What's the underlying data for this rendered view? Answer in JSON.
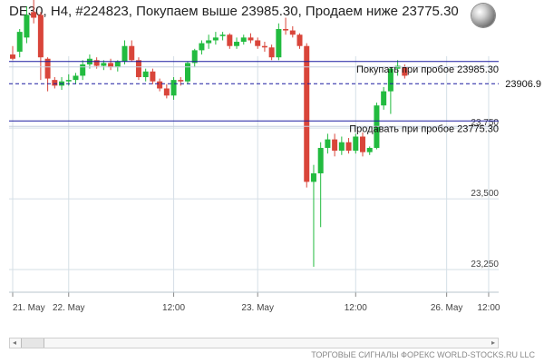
{
  "header": {
    "title": "DE30, H4, #224823, Покупаем выше 23985.30, Продаем ниже 23775.30",
    "globe_icon": "globe-icon"
  },
  "footer": {
    "text": "ТОРГОВЫЕ СИГНАЛЫ ФОРЕКС WORLD-STOCKS.RU LLC"
  },
  "scrollbar": {
    "left_arrow": "◂",
    "right_arrow": "▸",
    "thumb_icon": "grip-icon"
  },
  "colors": {
    "bull": "#22bb3f",
    "bear": "#d9453a",
    "level_line": "#1a1aa0",
    "grid": "#d5dfe6"
  },
  "chart_data": {
    "type": "candlestick",
    "ylim": [
      23170,
      24100
    ],
    "y_ticks": [
      23250,
      23500,
      23750
    ],
    "y_tick_labels": [
      "23,250",
      "23,500",
      "23,750"
    ],
    "x_tick_labels": [
      "21. May",
      "22. May",
      "12:00",
      "23. May",
      "12:00",
      "26. May",
      "12:00"
    ],
    "x_tick_index": [
      0,
      8,
      23,
      35,
      49,
      62,
      68
    ],
    "levels": [
      {
        "label": "Покупать при пробое 23985.30",
        "value": 23985.3
      },
      {
        "label": "Продавать при пробое 23775.30",
        "value": 23775.3
      }
    ],
    "current_price": {
      "label": "23906.9",
      "value": 23906.9
    },
    "candles": [
      [
        24010,
        24040,
        23990,
        23995
      ],
      [
        24020,
        24100,
        24000,
        24090
      ],
      [
        24070,
        24180,
        24050,
        24150
      ],
      [
        24160,
        24210,
        24120,
        24140
      ],
      [
        24150,
        24160,
        23920,
        24000
      ],
      [
        23995,
        24000,
        23880,
        23925
      ],
      [
        23920,
        23930,
        23890,
        23900
      ],
      [
        23900,
        23930,
        23885,
        23915
      ],
      [
        23915,
        23940,
        23900,
        23920
      ],
      [
        23920,
        23945,
        23905,
        23935
      ],
      [
        23935,
        23990,
        23920,
        23975
      ],
      [
        23975,
        24010,
        23960,
        23995
      ],
      [
        23990,
        24000,
        23960,
        23970
      ],
      [
        23970,
        23990,
        23955,
        23980
      ],
      [
        23980,
        23995,
        23955,
        23965
      ],
      [
        23965,
        23990,
        23950,
        23985
      ],
      [
        23985,
        24060,
        23975,
        24040
      ],
      [
        24040,
        24060,
        23985,
        23990
      ],
      [
        23990,
        24000,
        23920,
        23930
      ],
      [
        23930,
        23960,
        23915,
        23950
      ],
      [
        23950,
        23960,
        23905,
        23915
      ],
      [
        23915,
        23925,
        23880,
        23890
      ],
      [
        23890,
        23905,
        23855,
        23865
      ],
      [
        23865,
        23930,
        23850,
        23920
      ],
      [
        23920,
        23930,
        23900,
        23915
      ],
      [
        23915,
        23985,
        23905,
        23980
      ],
      [
        23980,
        24030,
        23965,
        24025
      ],
      [
        24025,
        24060,
        24010,
        24050
      ],
      [
        24050,
        24080,
        24030,
        24060
      ],
      [
        24060,
        24090,
        24045,
        24070
      ],
      [
        24075,
        24090,
        24060,
        24080
      ],
      [
        24080,
        24085,
        24030,
        24040
      ],
      [
        24040,
        24070,
        24030,
        24055
      ],
      [
        24055,
        24080,
        24045,
        24070
      ],
      [
        24070,
        24085,
        24050,
        24060
      ],
      [
        24060,
        24070,
        24030,
        24040
      ],
      [
        24040,
        24055,
        24020,
        24035
      ],
      [
        24035,
        24045,
        23990,
        24000
      ],
      [
        24000,
        24120,
        23990,
        24100
      ],
      [
        24100,
        24140,
        24080,
        24095
      ],
      [
        24095,
        24110,
        24070,
        24080
      ],
      [
        24080,
        24085,
        24030,
        24040
      ],
      [
        24040,
        24050,
        23540,
        23560
      ],
      [
        23560,
        23620,
        23260,
        23590
      ],
      [
        23590,
        23700,
        23400,
        23680
      ],
      [
        23680,
        23730,
        23660,
        23710
      ],
      [
        23710,
        23730,
        23650,
        23670
      ],
      [
        23670,
        23720,
        23655,
        23700
      ],
      [
        23700,
        23715,
        23660,
        23670
      ],
      [
        23670,
        23730,
        23660,
        23720
      ],
      [
        23720,
        23735,
        23650,
        23665
      ],
      [
        23665,
        23685,
        23655,
        23680
      ],
      [
        23680,
        23840,
        23675,
        23830
      ],
      [
        23830,
        23895,
        23815,
        23880
      ],
      [
        23880,
        23965,
        23800,
        23960
      ],
      [
        23960,
        23990,
        23935,
        23970
      ],
      [
        23965,
        23975,
        23925,
        23935
      ]
    ]
  }
}
